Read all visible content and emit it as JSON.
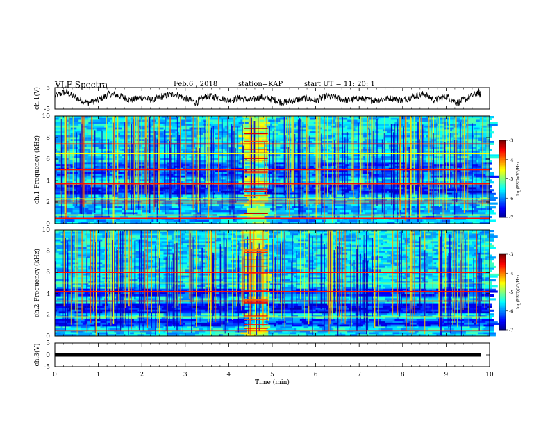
{
  "header": {
    "title": "VLF Spectra",
    "date": "Feb.6 , 2018",
    "station": "station=KAP",
    "start": "start UT =  11: 20: 1"
  },
  "chart_data": [
    {
      "type": "line",
      "name": "ch1-waveform",
      "ylabel": "ch.1(V)",
      "ylim": [
        -5,
        5
      ],
      "xlim": [
        0,
        10
      ],
      "yticks": [
        "5",
        "-5"
      ],
      "x": [
        0,
        0.25,
        0.5,
        0.75,
        1,
        1.25,
        1.5,
        1.75,
        2,
        2.25,
        2.5,
        2.75,
        3,
        3.25,
        3.5,
        3.75,
        4,
        4.25,
        4.5,
        4.75,
        5,
        5.25,
        5.5,
        5.75,
        6,
        6.25,
        6.5,
        6.75,
        7,
        7.25,
        7.5,
        7.75,
        8,
        8.25,
        8.5,
        8.75,
        9,
        9.25,
        9.5,
        9.75,
        9.8
      ],
      "values": [
        1,
        3,
        0,
        -2,
        -1,
        2,
        1,
        -1,
        0.5,
        -1,
        1,
        2,
        0,
        -2,
        1,
        0.5,
        -1,
        0,
        -1,
        0.5,
        -0.5,
        -2,
        -1,
        0,
        -1,
        1,
        0,
        -1,
        0,
        -1,
        -0.5,
        0,
        -1,
        1,
        2,
        -1,
        1,
        -2,
        0,
        3,
        1
      ]
    },
    {
      "type": "heatmap",
      "name": "ch1-spectrogram",
      "ylabel": "ch.1 Frequency (kHz)",
      "ylim": [
        0,
        10
      ],
      "xlim": [
        0,
        10
      ],
      "yticks": [
        "0",
        "2",
        "4",
        "6",
        "8",
        "10"
      ],
      "colorbar": {
        "label": "log(PSD)(V²/Hz)",
        "range": [
          -7,
          -3
        ],
        "ticks": [
          "-3",
          "-4",
          "-5",
          "-6",
          "-7"
        ]
      },
      "strong_lines_khz": [
        0.5,
        0.8,
        1.9,
        2.1,
        2.3,
        3.7,
        5.0,
        6.5,
        7.4
      ],
      "burst_time_min": [
        4.35,
        4.9
      ]
    },
    {
      "type": "heatmap",
      "name": "ch2-spectrogram",
      "ylabel": "ch.2 Frequency (kHz)",
      "ylim": [
        0,
        10
      ],
      "xlim": [
        0,
        10
      ],
      "yticks": [
        "0",
        "2",
        "4",
        "6",
        "8",
        "10"
      ],
      "colorbar": {
        "label": "log(PSD)(V²/Hz)",
        "range": [
          -7,
          -3
        ],
        "ticks": [
          "-3",
          "-4",
          "-5",
          "-6",
          "-7"
        ]
      },
      "strong_lines_khz": [
        0.5,
        1.8,
        3.3,
        4.2,
        5.0,
        6.0
      ],
      "burst_time_min": [
        4.35,
        4.9
      ]
    },
    {
      "type": "line",
      "name": "ch3-waveform",
      "ylabel": "ch.3(V)",
      "ylim": [
        -5,
        5
      ],
      "xlim": [
        0,
        10
      ],
      "yticks": [
        "5",
        "0",
        "-5"
      ],
      "x": [
        0,
        9.8
      ],
      "values": [
        0,
        0
      ]
    }
  ],
  "xaxis": {
    "label": "Time (min)",
    "ticks": [
      "0",
      "1",
      "2",
      "3",
      "4",
      "5",
      "6",
      "7",
      "8",
      "9",
      "10"
    ]
  }
}
